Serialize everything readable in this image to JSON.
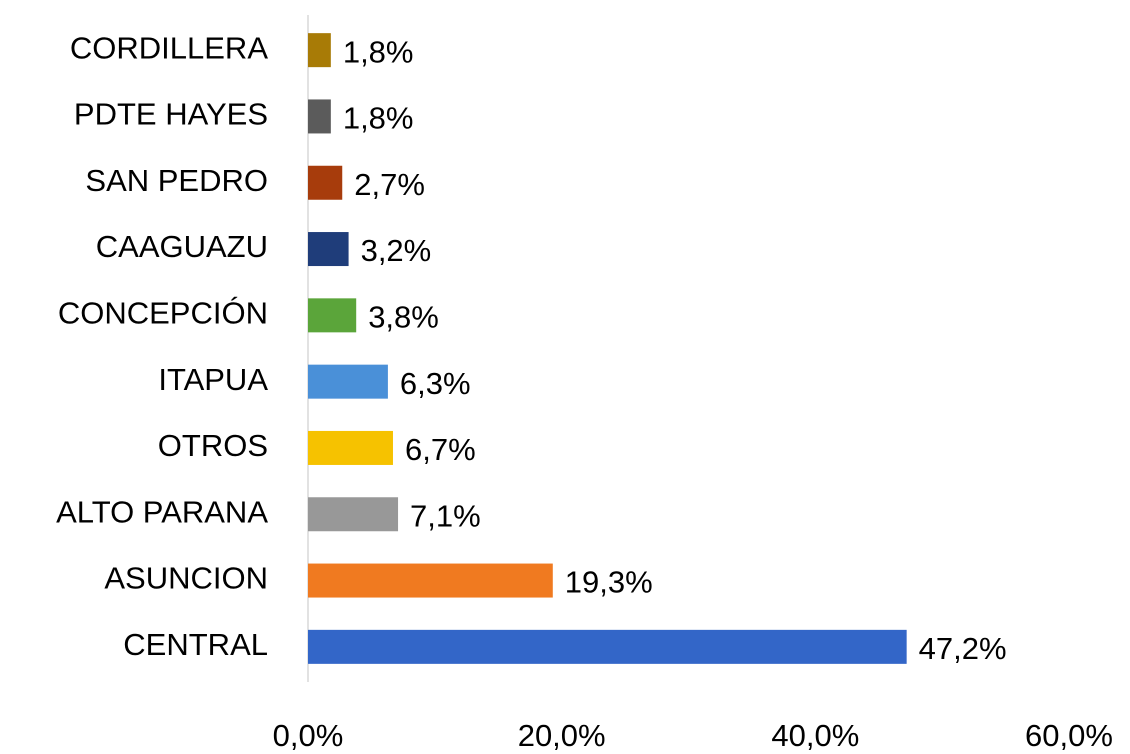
{
  "chart_data": {
    "type": "bar",
    "orientation": "horizontal",
    "categories": [
      "CORDILLERA",
      "PDTE HAYES",
      "SAN PEDRO",
      "CAAGUAZU",
      "CONCEPCIÓN",
      "ITAPUA",
      "OTROS",
      "ALTO PARANA",
      "ASUNCION",
      "CENTRAL"
    ],
    "values": [
      1.8,
      1.8,
      2.7,
      3.2,
      3.8,
      6.3,
      6.7,
      7.1,
      19.3,
      47.2
    ],
    "value_labels": [
      "1,8%",
      "1,8%",
      "2,7%",
      "3,2%",
      "3,8%",
      "6,3%",
      "6,7%",
      "7,1%",
      "19,3%",
      "47,2%"
    ],
    "colors": [
      "#a87b06",
      "#5b5b5b",
      "#a73c0c",
      "#1f3d7a",
      "#5ba53a",
      "#4a90d8",
      "#f6c200",
      "#989898",
      "#f07a20",
      "#3366c8"
    ],
    "xlim": [
      0,
      60
    ],
    "xticks": [
      {
        "value": 0,
        "label": "0,0%"
      },
      {
        "value": 20,
        "label": "20,0%"
      },
      {
        "value": 40,
        "label": "40,0%"
      },
      {
        "value": 60,
        "label": "60,0%"
      }
    ],
    "grid": false
  }
}
